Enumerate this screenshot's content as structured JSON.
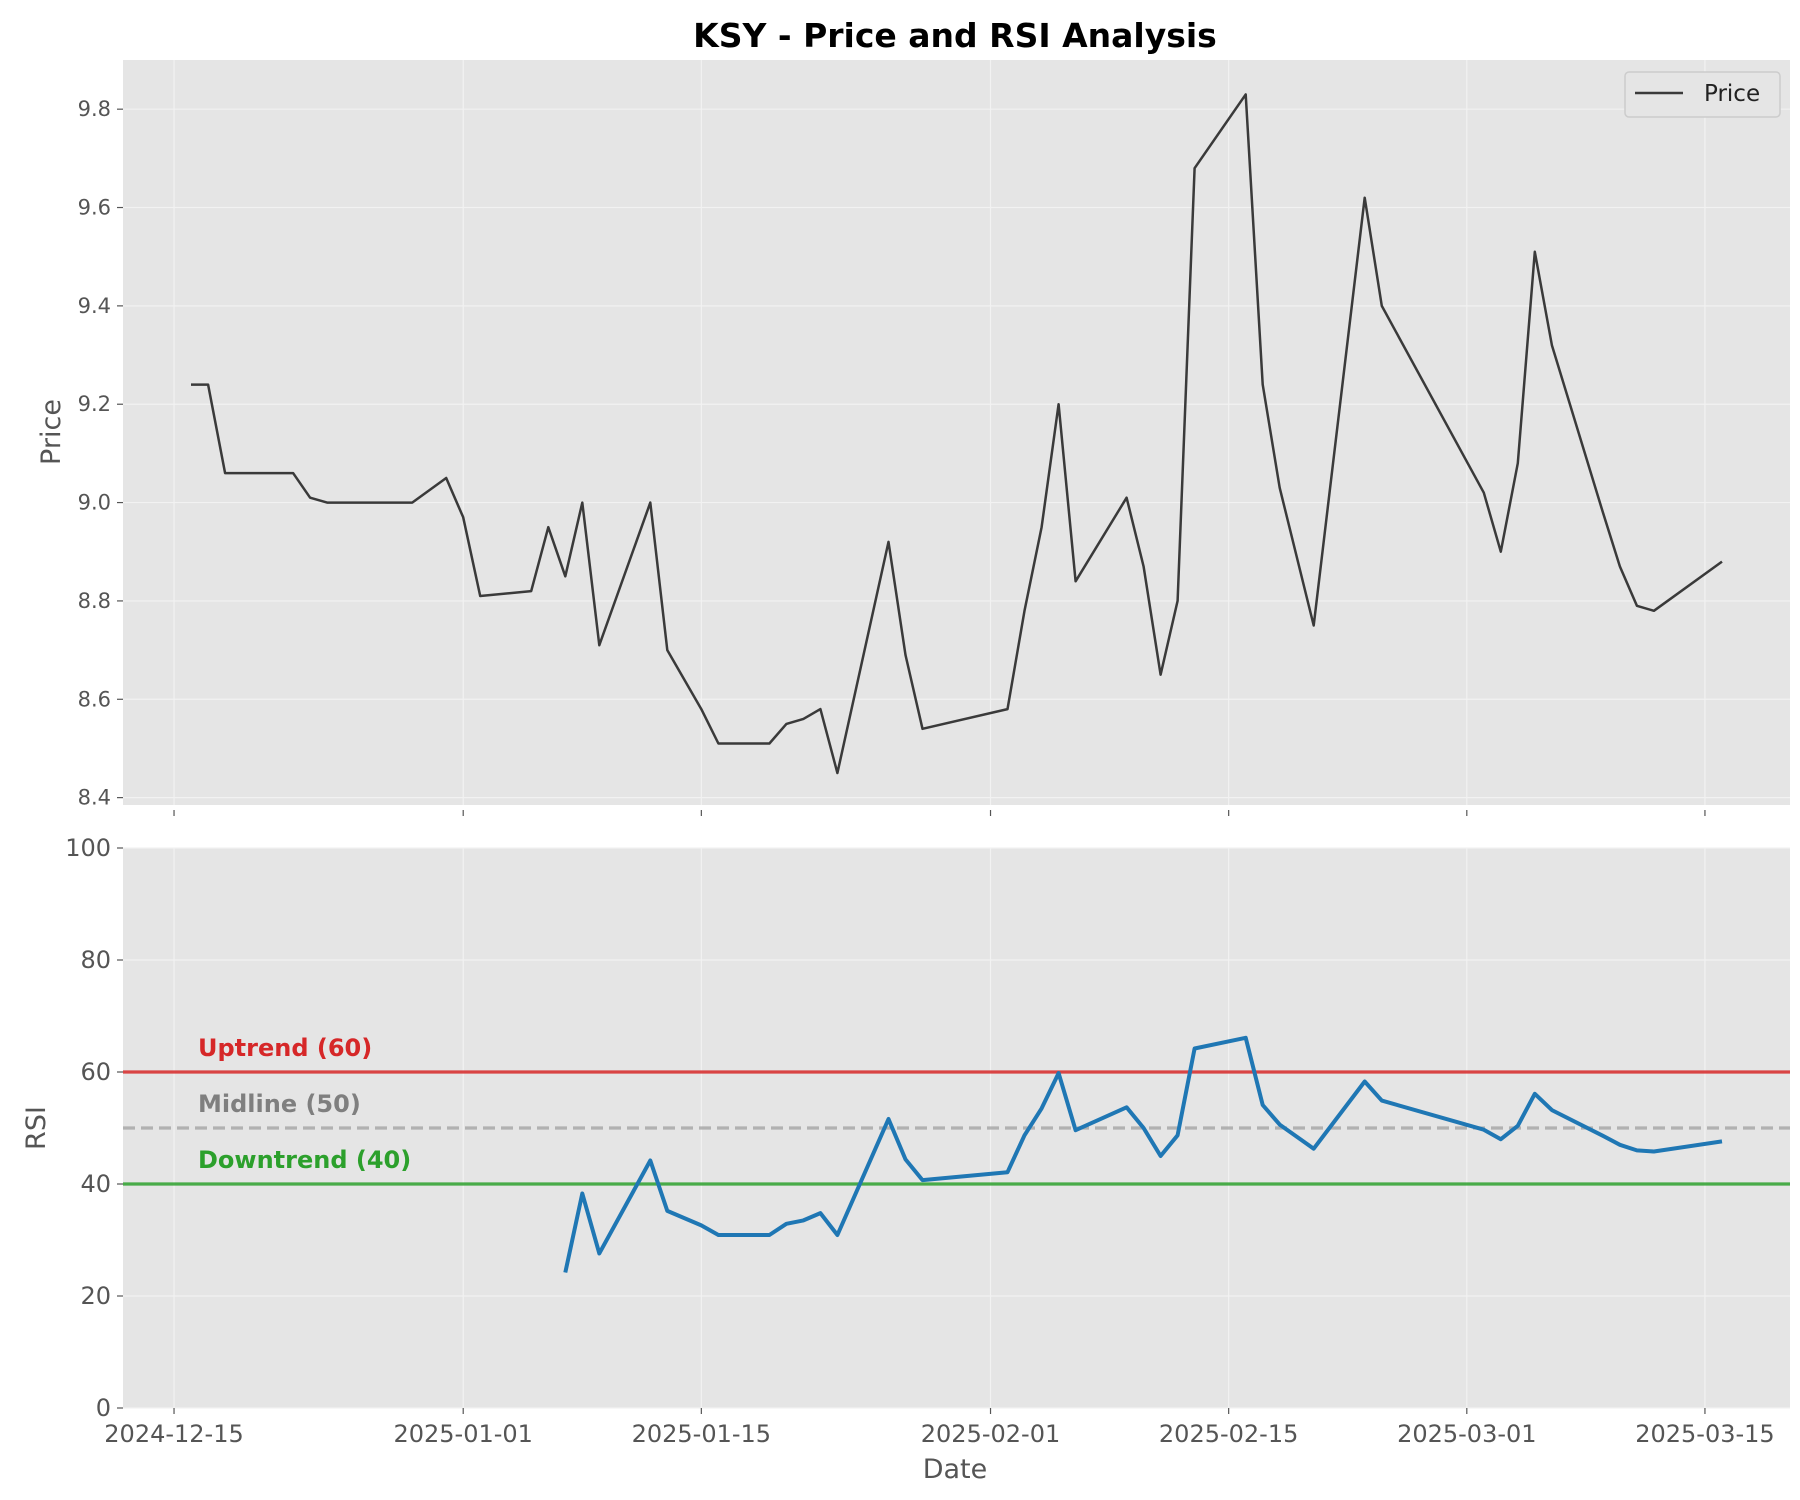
{
  "title": "KSY - Price and RSI Analysis",
  "chart_data": {
    "type": "line",
    "x_type": "date",
    "x_label": "Date",
    "x_ticks": [
      "2024-12-15",
      "2025-01-01",
      "2025-01-15",
      "2025-02-01",
      "2025-02-15",
      "2025-03-01",
      "2025-03-15"
    ],
    "x_range": [
      "2024-12-12",
      "2025-03-20"
    ],
    "grid": true,
    "price_panel": {
      "ylabel": "Price",
      "ylim": [
        8.385,
        9.9
      ],
      "y_ticks": [
        "8.4",
        "8.6",
        "8.8",
        "9.0",
        "9.2",
        "9.4",
        "9.6",
        "9.8"
      ],
      "legend": {
        "entries": [
          "Price"
        ],
        "placement": "top-right"
      },
      "series": [
        {
          "name": "Price",
          "color": "#3a3a3a",
          "points": [
            [
              "2024-12-16",
              9.24
            ],
            [
              "2024-12-17",
              9.24
            ],
            [
              "2024-12-18",
              9.06
            ],
            [
              "2024-12-22",
              9.06
            ],
            [
              "2024-12-23",
              9.01
            ],
            [
              "2024-12-24",
              9.0
            ],
            [
              "2024-12-29",
              9.0
            ],
            [
              "2024-12-31",
              9.05
            ],
            [
              "2025-01-01",
              8.97
            ],
            [
              "2025-01-02",
              8.81
            ],
            [
              "2025-01-05",
              8.82
            ],
            [
              "2025-01-06",
              8.95
            ],
            [
              "2025-01-07",
              8.85
            ],
            [
              "2025-01-08",
              9.0
            ],
            [
              "2025-01-09",
              8.71
            ],
            [
              "2025-01-12",
              9.0
            ],
            [
              "2025-01-13",
              8.7
            ],
            [
              "2025-01-15",
              8.58
            ],
            [
              "2025-01-16",
              8.51
            ],
            [
              "2025-01-19",
              8.51
            ],
            [
              "2025-01-20",
              8.55
            ],
            [
              "2025-01-21",
              8.56
            ],
            [
              "2025-01-22",
              8.58
            ],
            [
              "2025-01-23",
              8.45
            ],
            [
              "2025-01-26",
              8.92
            ],
            [
              "2025-01-27",
              8.69
            ],
            [
              "2025-01-28",
              8.54
            ],
            [
              "2025-02-02",
              8.58
            ],
            [
              "2025-02-03",
              8.78
            ],
            [
              "2025-02-04",
              8.95
            ],
            [
              "2025-02-05",
              9.2
            ],
            [
              "2025-02-06",
              8.84
            ],
            [
              "2025-02-09",
              9.01
            ],
            [
              "2025-02-10",
              8.87
            ],
            [
              "2025-02-11",
              8.65
            ],
            [
              "2025-02-12",
              8.8
            ],
            [
              "2025-02-13",
              9.68
            ],
            [
              "2025-02-16",
              9.83
            ],
            [
              "2025-02-17",
              9.24
            ],
            [
              "2025-02-18",
              9.03
            ],
            [
              "2025-02-20",
              8.75
            ],
            [
              "2025-02-23",
              9.62
            ],
            [
              "2025-02-24",
              9.4
            ],
            [
              "2025-03-02",
              9.02
            ],
            [
              "2025-03-03",
              8.9
            ],
            [
              "2025-03-04",
              9.08
            ],
            [
              "2025-03-05",
              9.51
            ],
            [
              "2025-03-06",
              9.32
            ],
            [
              "2025-03-09",
              8.98
            ],
            [
              "2025-03-10",
              8.87
            ],
            [
              "2025-03-11",
              8.79
            ],
            [
              "2025-03-12",
              8.78
            ],
            [
              "2025-03-16",
              8.88
            ]
          ]
        }
      ]
    },
    "rsi_panel": {
      "ylabel": "RSI",
      "ylim": [
        0,
        100
      ],
      "y_ticks": [
        "0",
        "20",
        "40",
        "60",
        "80",
        "100"
      ],
      "series": [
        {
          "color": "#1f77b4",
          "points": [
            [
              "2025-01-07",
              24.2
            ],
            [
              "2025-01-08",
              38.3
            ],
            [
              "2025-01-09",
              27.6
            ],
            [
              "2025-01-12",
              44.2
            ],
            [
              "2025-01-13",
              35.2
            ],
            [
              "2025-01-15",
              32.6
            ],
            [
              "2025-01-16",
              30.9
            ],
            [
              "2025-01-19",
              30.9
            ],
            [
              "2025-01-20",
              32.9
            ],
            [
              "2025-01-21",
              33.5
            ],
            [
              "2025-01-22",
              34.8
            ],
            [
              "2025-01-23",
              30.9
            ],
            [
              "2025-01-26",
              51.6
            ],
            [
              "2025-01-27",
              44.4
            ],
            [
              "2025-01-28",
              40.7
            ],
            [
              "2025-02-02",
              42.1
            ],
            [
              "2025-02-03",
              48.7
            ],
            [
              "2025-02-04",
              53.5
            ],
            [
              "2025-02-05",
              59.8
            ],
            [
              "2025-02-06",
              49.6
            ],
            [
              "2025-02-09",
              53.7
            ],
            [
              "2025-02-10",
              50.0
            ],
            [
              "2025-02-11",
              45.0
            ],
            [
              "2025-02-12",
              48.7
            ],
            [
              "2025-02-13",
              64.2
            ],
            [
              "2025-02-16",
              66.1
            ],
            [
              "2025-02-17",
              54.1
            ],
            [
              "2025-02-18",
              50.6
            ],
            [
              "2025-02-20",
              46.3
            ],
            [
              "2025-02-23",
              58.3
            ],
            [
              "2025-02-24",
              54.9
            ],
            [
              "2025-03-02",
              49.7
            ],
            [
              "2025-03-03",
              48.0
            ],
            [
              "2025-03-04",
              50.4
            ],
            [
              "2025-03-05",
              56.1
            ],
            [
              "2025-03-06",
              53.2
            ],
            [
              "2025-03-09",
              48.6
            ],
            [
              "2025-03-10",
              47.0
            ],
            [
              "2025-03-11",
              46.0
            ],
            [
              "2025-03-12",
              45.8
            ],
            [
              "2025-03-16",
              47.6
            ]
          ]
        }
      ],
      "reference_lines": [
        {
          "label": "Uptrend (60)",
          "value": 60,
          "color": "#d62728",
          "style": "solid"
        },
        {
          "label": "Midline (50)",
          "value": 50,
          "color": "#7f7f7f",
          "line_color": "#a9a9a9",
          "style": "dashed"
        },
        {
          "label": "Downtrend (40)",
          "value": 40,
          "color": "#2ca02c",
          "style": "solid"
        }
      ]
    }
  }
}
